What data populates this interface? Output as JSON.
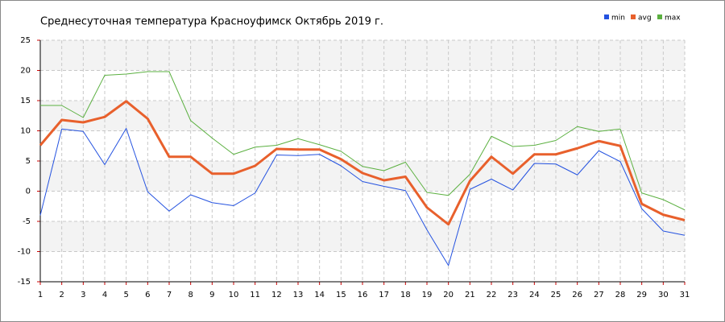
{
  "chart_data": {
    "type": "line",
    "title": "Среднесуточная температура Красноуфимск  Октябрь 2019 г.",
    "x": [
      1,
      2,
      3,
      4,
      5,
      6,
      7,
      8,
      9,
      10,
      11,
      12,
      13,
      14,
      15,
      16,
      17,
      18,
      19,
      20,
      21,
      22,
      23,
      24,
      25,
      26,
      27,
      28,
      29,
      30,
      31
    ],
    "xlim": [
      1,
      31
    ],
    "xticks": [
      1,
      2,
      3,
      4,
      5,
      6,
      7,
      8,
      9,
      10,
      11,
      12,
      13,
      14,
      15,
      16,
      17,
      18,
      19,
      20,
      21,
      22,
      23,
      24,
      25,
      26,
      27,
      28,
      29,
      30,
      31
    ],
    "ylim": [
      -15,
      25
    ],
    "yticks": [
      -15,
      -10,
      -5,
      0,
      5,
      10,
      15,
      20,
      25
    ],
    "grid": true,
    "legend": "top-right",
    "series": [
      {
        "name": "min",
        "color": "#2452e0",
        "values": [
          -4,
          10.3,
          9.9,
          4.4,
          10.4,
          -0.1,
          -3.3,
          -0.6,
          -1.9,
          -2.4,
          -0.3,
          6.0,
          5.9,
          6.1,
          4.2,
          1.6,
          0.8,
          0.1,
          -6.4,
          -12.3,
          0.3,
          2.0,
          0.2,
          4.6,
          4.5,
          2.7,
          6.7,
          4.9,
          -2.9,
          -6.6,
          -7.3
        ]
      },
      {
        "name": "avg",
        "color": "#e8602c",
        "values": [
          7.6,
          11.8,
          11.4,
          12.3,
          14.9,
          12,
          5.7,
          5.7,
          2.9,
          2.9,
          4.2,
          7,
          6.9,
          6.9,
          5.3,
          3,
          1.8,
          2.4,
          -2.7,
          -5.5,
          1.7,
          5.7,
          2.9,
          6.1,
          6.1,
          7.1,
          8.3,
          7.5,
          -2.1,
          -3.9,
          -4.8
        ]
      },
      {
        "name": "max",
        "color": "#5bb040",
        "values": [
          14.2,
          14.2,
          12.2,
          19.2,
          19.4,
          19.8,
          19.8,
          11.7,
          8.8,
          6.1,
          7.3,
          7.6,
          8.7,
          7.7,
          6.6,
          4.1,
          3.4,
          4.8,
          -0.2,
          -0.7,
          2.8,
          9.1,
          7.4,
          7.6,
          8.4,
          10.7,
          9.9,
          10.3,
          -0.3,
          -1.4,
          -3.1
        ]
      }
    ]
  }
}
